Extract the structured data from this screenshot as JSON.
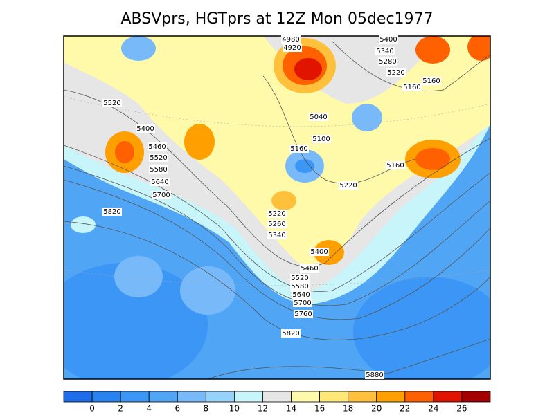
{
  "title": "ABSVprs, HGTprs at 12Z Mon 05dec1977",
  "contour_labels": [
    4980,
    4920,
    5400,
    5340,
    5280,
    5220,
    5160,
    5160,
    5520,
    5040,
    5400,
    5100,
    5460,
    5160,
    5520,
    5160,
    5580,
    5640,
    5220,
    5700,
    5820,
    5220,
    5260,
    5340,
    5400,
    5460,
    5520,
    5580,
    5640,
    5700,
    5760,
    5820,
    5880
  ],
  "colorbar": {
    "colors": [
      "#1e6eeb",
      "#2882f0",
      "#3c96f5",
      "#50a5f5",
      "#78b9fa",
      "#96d2fa",
      "#c8f5fa",
      "#e6e6e6",
      "#fffaaa",
      "#ffe878",
      "#ffc03c",
      "#ffa000",
      "#ff6000",
      "#e11400",
      "#a50000"
    ],
    "ticks": [
      0,
      2,
      4,
      6,
      8,
      10,
      12,
      14,
      16,
      18,
      20,
      22,
      24,
      26
    ]
  }
}
